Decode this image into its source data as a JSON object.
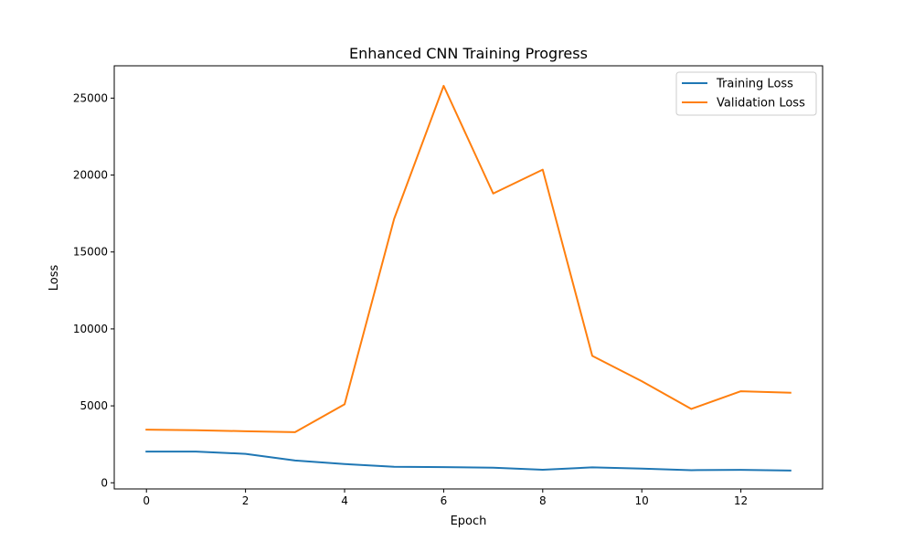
{
  "chart_data": {
    "type": "line",
    "title": "Enhanced CNN Training Progress",
    "xlabel": "Epoch",
    "ylabel": "Loss",
    "xlim": [
      -0.65,
      13.65
    ],
    "ylim": [
      -400,
      27100
    ],
    "x_ticks": [
      0,
      2,
      4,
      6,
      8,
      10,
      12
    ],
    "y_ticks": [
      0,
      5000,
      10000,
      15000,
      20000,
      25000
    ],
    "x": [
      0,
      1,
      2,
      3,
      4,
      5,
      6,
      7,
      8,
      9,
      10,
      11,
      12,
      13
    ],
    "series": [
      {
        "name": "Training Loss",
        "color": "#1f77b4",
        "values": [
          2030,
          2030,
          1880,
          1450,
          1220,
          1040,
          1020,
          980,
          850,
          1000,
          920,
          820,
          840,
          800
        ]
      },
      {
        "name": "Validation Loss",
        "color": "#ff7f0e",
        "values": [
          3450,
          3420,
          3350,
          3290,
          5100,
          17150,
          25800,
          18800,
          20350,
          8250,
          6600,
          4800,
          5950,
          5850
        ]
      }
    ],
    "legend_position": "top-right",
    "grid": false
  }
}
